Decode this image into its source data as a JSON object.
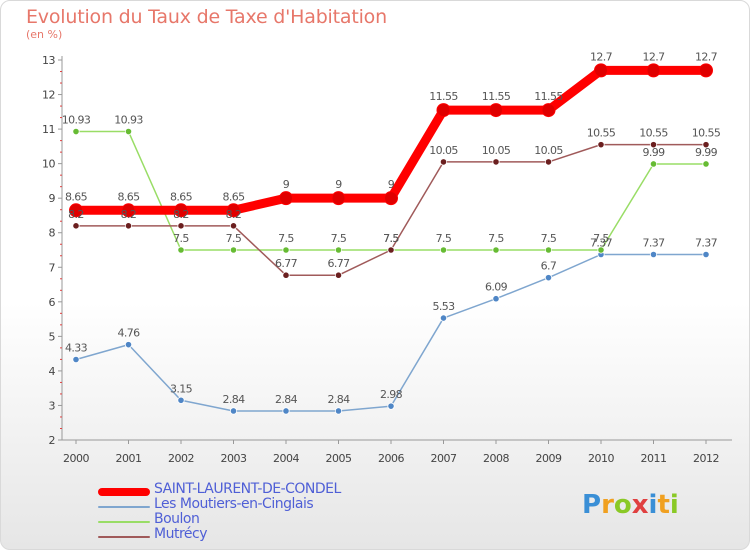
{
  "title": "Evolution du Taux de Taxe d'Habitation",
  "unit_label": "(en %)",
  "logo": {
    "text": "Proxiti",
    "letters": [
      {
        "ch": "P",
        "color": "#3a8fd6"
      },
      {
        "ch": "r",
        "color": "#f0a020"
      },
      {
        "ch": "o",
        "color": "#8ac926"
      },
      {
        "ch": "x",
        "color": "#e04040"
      },
      {
        "ch": "i",
        "color": "#3a8fd6"
      },
      {
        "ch": "t",
        "color": "#f0a020"
      },
      {
        "ch": "i",
        "color": "#8ac926"
      }
    ]
  },
  "chart_data": {
    "type": "line",
    "title": "Evolution du Taux de Taxe d'Habitation",
    "ylabel": "(en %)",
    "xlabel": "",
    "x": [
      2000,
      2001,
      2002,
      2003,
      2004,
      2005,
      2006,
      2007,
      2008,
      2009,
      2010,
      2011,
      2012
    ],
    "ylim": [
      2,
      13
    ],
    "yticks": [
      2,
      3,
      4,
      5,
      6,
      7,
      8,
      9,
      10,
      11,
      12,
      13
    ],
    "grid": false,
    "legend_position": "bottom-left",
    "series": [
      {
        "name": "SAINT-LAURENT-DE-CONDEL",
        "color": "#ff0000",
        "marker_color": "#e00000",
        "thick": true,
        "values": [
          8.65,
          8.65,
          8.65,
          8.65,
          9,
          9,
          9,
          11.55,
          11.55,
          11.55,
          12.7,
          12.7,
          12.7
        ],
        "labels": [
          "8.65",
          "8.65",
          "8.65",
          "8.65",
          "9",
          "9",
          "9",
          "11.55",
          "11.55",
          "11.55",
          "12.7",
          "12.7",
          "12.7"
        ]
      },
      {
        "name": "Les Moutiers-en-Cinglais",
        "color": "#7fa6cf",
        "marker_color": "#4f86c6",
        "thick": false,
        "values": [
          4.33,
          4.76,
          3.15,
          2.84,
          2.84,
          2.84,
          2.98,
          5.53,
          6.09,
          6.7,
          7.37,
          7.37,
          7.37
        ],
        "labels": [
          "4.33",
          "4.76",
          "3.15",
          "2.84",
          "2.84",
          "2.84",
          "2.98",
          "5.53",
          "6.09",
          "6.7",
          "7.37",
          "7.37",
          "7.37"
        ]
      },
      {
        "name": "Boulon",
        "color": "#99dd66",
        "marker_color": "#66bb33",
        "thick": false,
        "values": [
          10.93,
          10.93,
          7.5,
          7.5,
          7.5,
          7.5,
          7.5,
          7.5,
          7.5,
          7.5,
          7.5,
          9.99,
          9.99
        ],
        "labels": [
          "10.93",
          "10.93",
          "7.5",
          "7.5",
          "7.5",
          "7.5",
          "7.5",
          "7.5",
          "7.5",
          "7.5",
          "7.5",
          "9.99",
          "9.99"
        ]
      },
      {
        "name": "Mutrécy",
        "color": "#a05a5a",
        "marker_color": "#6b1f1f",
        "thick": false,
        "values": [
          8.2,
          8.2,
          8.2,
          8.2,
          6.77,
          6.77,
          7.5,
          10.05,
          10.05,
          10.05,
          10.55,
          10.55,
          10.55
        ],
        "labels": [
          "8.2",
          "8.2",
          "8.2",
          "8.2",
          "6.77",
          "6.77",
          "7.5",
          "10.05",
          "10.05",
          "10.05",
          "10.55",
          "10.55",
          "10.55"
        ]
      }
    ]
  }
}
